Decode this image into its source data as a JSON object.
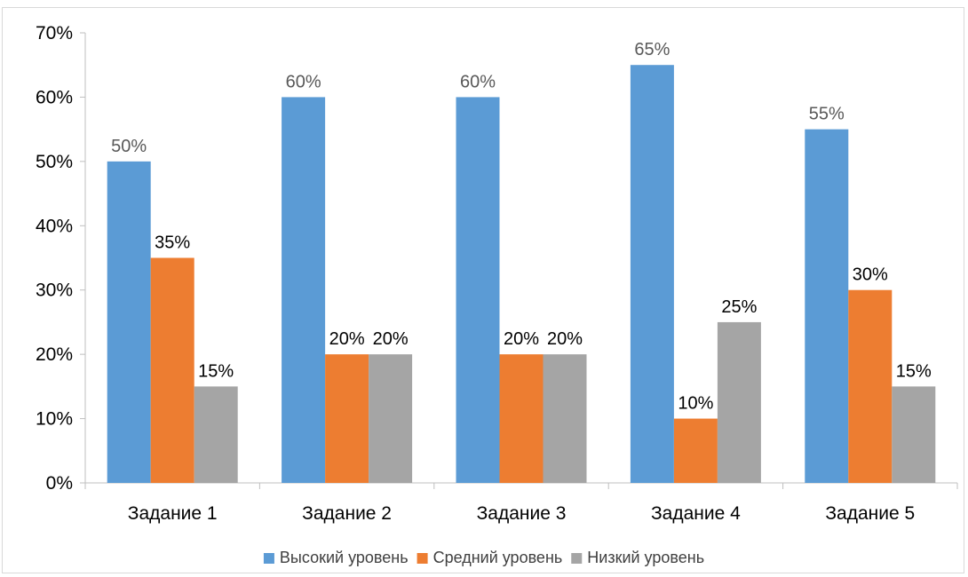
{
  "chart_data": {
    "type": "bar",
    "categories": [
      "Задание 1",
      "Задание 2",
      "Задание 3",
      "Задание 4",
      "Задание 5"
    ],
    "series": [
      {
        "name": "Высокий уровень",
        "color": "#5b9bd5",
        "label_color": "#595959",
        "values": [
          50,
          60,
          60,
          65,
          55
        ]
      },
      {
        "name": "Средний уровень",
        "color": "#ed7d31",
        "label_color": "#000000",
        "values": [
          35,
          20,
          20,
          10,
          30
        ]
      },
      {
        "name": "Низкий уровень",
        "color": "#a5a5a5",
        "label_color": "#000000",
        "values": [
          15,
          20,
          20,
          25,
          15
        ]
      }
    ],
    "ylim": [
      0,
      70
    ],
    "yticks": [
      0,
      10,
      20,
      30,
      40,
      50,
      60,
      70
    ],
    "tick_suffix": "%",
    "data_labels": true,
    "grid": false,
    "legend_position": "bottom"
  }
}
